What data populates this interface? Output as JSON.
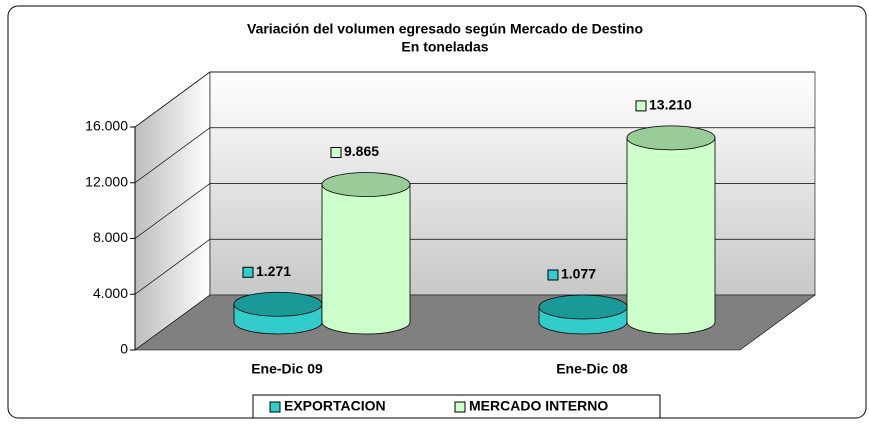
{
  "chart_data": {
    "type": "bar3d",
    "title": "Variación del volumen egresado según Mercado de Destino",
    "subtitle": "En toneladas",
    "categories": [
      "Ene-Dic 09",
      "Ene-Dic 08"
    ],
    "series": [
      {
        "name": "EXPORTACION",
        "color": "#33cccc",
        "values": [
          1271,
          1077
        ],
        "value_labels": [
          "1.271",
          "1.077"
        ]
      },
      {
        "name": "MERCADO INTERNO",
        "color": "#ccffcc",
        "values": [
          9865,
          13210
        ],
        "value_labels": [
          "9.865",
          "13.210"
        ]
      }
    ],
    "ylim": [
      0,
      16000
    ],
    "yticks": [
      0,
      {
        "value": 4000,
        "label": "4.000"
      },
      {
        "value": 8000,
        "label": "8.000"
      },
      {
        "value": 12000,
        "label": "12.000"
      },
      {
        "value": 16000,
        "label": "16.000"
      }
    ],
    "grid": true,
    "legend": "bottom"
  }
}
